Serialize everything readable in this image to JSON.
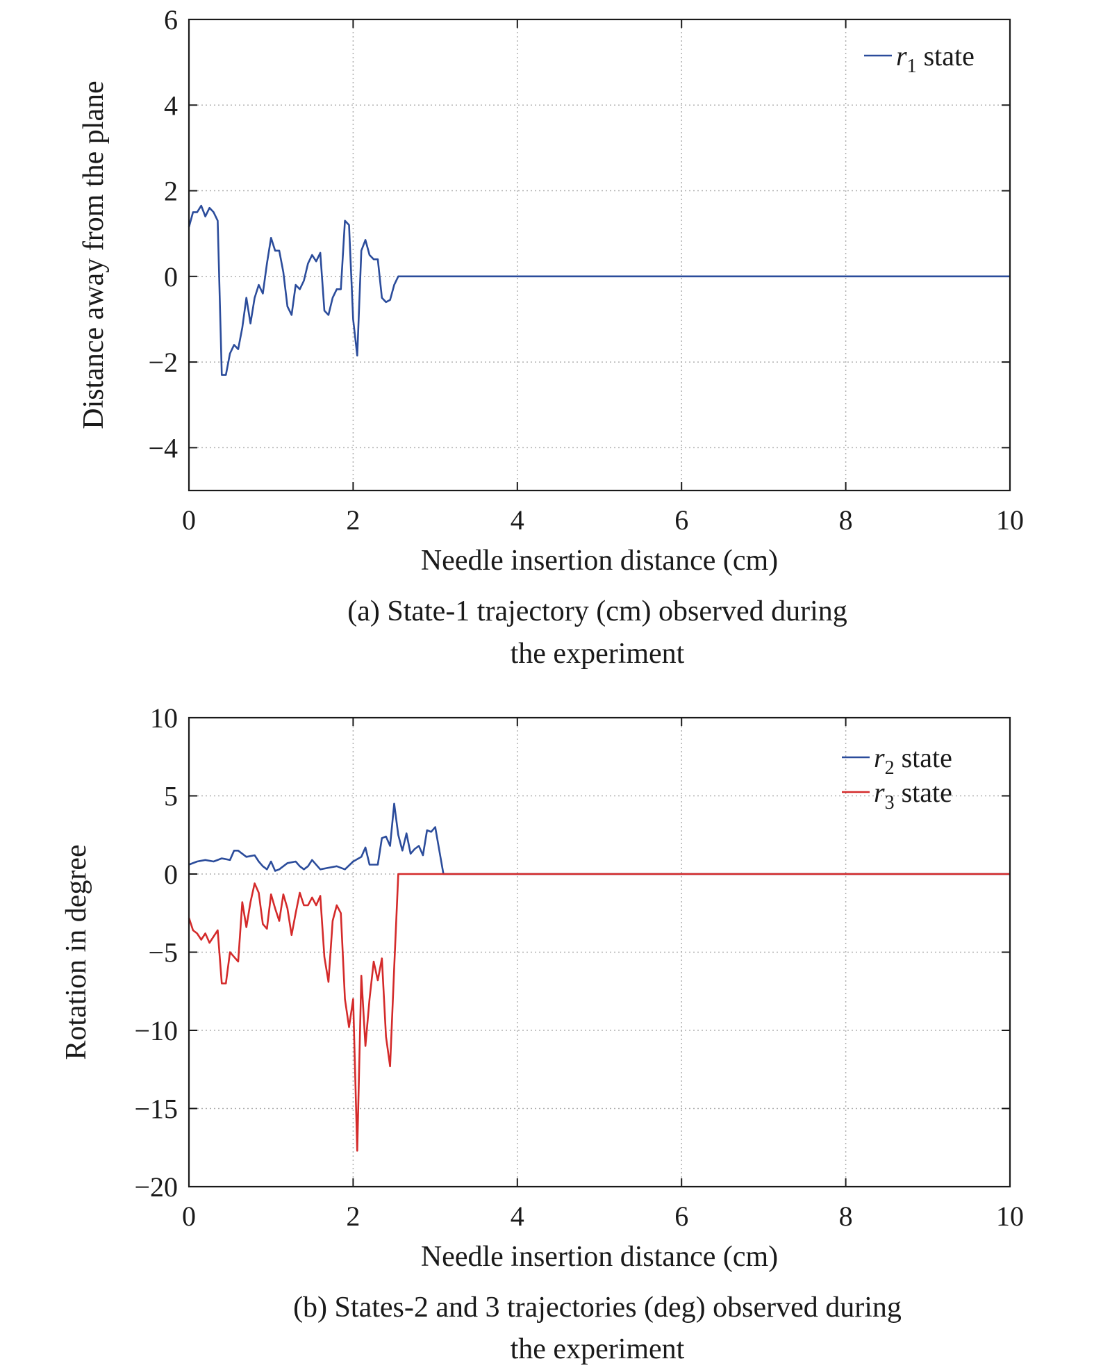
{
  "chart_data": [
    {
      "type": "line",
      "caption": [
        "(a) State-1 trajectory (cm) observed during",
        "the experiment"
      ],
      "xlabel": "Needle insertion distance (cm)",
      "ylabel": "Distance away from the plane",
      "xlim": [
        0,
        10
      ],
      "ylim": [
        -5,
        6
      ],
      "xticks": [
        0,
        2,
        4,
        6,
        8,
        10
      ],
      "yticks": [
        -4,
        -2,
        0,
        2,
        4,
        6
      ],
      "xtick_labels": [
        "0",
        "2",
        "4",
        "6",
        "8",
        "10"
      ],
      "ytick_labels": [
        "−4",
        "−2",
        "0",
        "2",
        "4",
        "6"
      ],
      "grid": true,
      "legend_position": "top-right",
      "series": [
        {
          "name": "r1 state",
          "legend_main": "r",
          "legend_sub": "1",
          "legend_rest": " state",
          "color": "#2b4c9b",
          "x": [
            0,
            0.05,
            0.1,
            0.15,
            0.2,
            0.25,
            0.3,
            0.35,
            0.4,
            0.45,
            0.5,
            0.55,
            0.6,
            0.65,
            0.7,
            0.75,
            0.8,
            0.85,
            0.9,
            0.95,
            1.0,
            1.05,
            1.1,
            1.15,
            1.2,
            1.25,
            1.3,
            1.35,
            1.4,
            1.45,
            1.5,
            1.55,
            1.6,
            1.65,
            1.7,
            1.75,
            1.8,
            1.85,
            1.9,
            1.95,
            2.0,
            2.05,
            2.1,
            2.15,
            2.2,
            2.25,
            2.3,
            2.35,
            2.4,
            2.45,
            2.5,
            2.55,
            2.6,
            2.65,
            2.7,
            2.75,
            2.8,
            2.85,
            2.9,
            2.95,
            3.0,
            3.05,
            3.1,
            10
          ],
          "y": [
            1.15,
            1.5,
            1.5,
            1.65,
            1.4,
            1.6,
            1.5,
            1.3,
            -2.3,
            -2.3,
            -1.8,
            -1.6,
            -1.7,
            -1.2,
            -0.5,
            -1.1,
            -0.5,
            -0.2,
            -0.4,
            0.3,
            0.9,
            0.6,
            0.6,
            0.1,
            -0.7,
            -0.9,
            -0.2,
            -0.3,
            -0.1,
            0.3,
            0.5,
            0.35,
            0.55,
            -0.8,
            -0.9,
            -0.5,
            -0.3,
            -0.3,
            1.3,
            1.2,
            -1.0,
            -1.85,
            0.6,
            0.85,
            0.5,
            0.4,
            0.4,
            -0.5,
            -0.6,
            -0.55,
            -0.2,
            0.0,
            0.0,
            0.0,
            0.0,
            0.0,
            0.0,
            0.0,
            0.0,
            0.0,
            0.0,
            0.0,
            0.0,
            0.0
          ]
        }
      ]
    },
    {
      "type": "line",
      "caption": [
        "(b) States-2 and 3 trajectories (deg) observed during",
        "the experiment"
      ],
      "xlabel": "Needle insertion distance (cm)",
      "ylabel": "Rotation in degree",
      "xlim": [
        0,
        10
      ],
      "ylim": [
        -20,
        10
      ],
      "xticks": [
        0,
        2,
        4,
        6,
        8,
        10
      ],
      "yticks": [
        -20,
        -15,
        -10,
        -5,
        0,
        5,
        10
      ],
      "xtick_labels": [
        "0",
        "2",
        "4",
        "6",
        "8",
        "10"
      ],
      "ytick_labels": [
        "−20",
        "−15",
        "−10",
        "−5",
        "0",
        "5",
        "10"
      ],
      "grid": true,
      "legend_position": "top-right",
      "series": [
        {
          "name": "r2 state",
          "legend_main": "r",
          "legend_sub": "2",
          "legend_rest": " state",
          "color": "#2b4c9b",
          "x": [
            0,
            0.1,
            0.2,
            0.3,
            0.4,
            0.5,
            0.55,
            0.6,
            0.7,
            0.8,
            0.85,
            0.9,
            0.95,
            1.0,
            1.05,
            1.1,
            1.2,
            1.3,
            1.35,
            1.4,
            1.45,
            1.5,
            1.6,
            1.7,
            1.8,
            1.9,
            2.0,
            2.1,
            2.15,
            2.2,
            2.3,
            2.35,
            2.4,
            2.45,
            2.5,
            2.55,
            2.6,
            2.65,
            2.7,
            2.75,
            2.8,
            2.85,
            2.9,
            2.95,
            3.0,
            3.05,
            3.1,
            10
          ],
          "y": [
            0.6,
            0.8,
            0.9,
            0.8,
            1.0,
            0.9,
            1.5,
            1.5,
            1.1,
            1.2,
            0.8,
            0.5,
            0.3,
            0.8,
            0.2,
            0.3,
            0.7,
            0.8,
            0.5,
            0.3,
            0.5,
            0.9,
            0.3,
            0.4,
            0.5,
            0.3,
            0.8,
            1.1,
            1.7,
            0.6,
            0.6,
            2.3,
            2.4,
            1.8,
            4.5,
            2.5,
            1.5,
            2.6,
            1.3,
            1.6,
            1.8,
            1.2,
            2.8,
            2.7,
            3.0,
            1.5,
            0.0,
            0.0
          ]
        },
        {
          "name": "r3 state",
          "legend_main": "r",
          "legend_sub": "3",
          "legend_rest": " state",
          "color": "#d42a2a",
          "x": [
            0,
            0.05,
            0.1,
            0.15,
            0.2,
            0.25,
            0.3,
            0.35,
            0.4,
            0.45,
            0.5,
            0.55,
            0.6,
            0.65,
            0.7,
            0.75,
            0.8,
            0.85,
            0.9,
            0.95,
            1.0,
            1.05,
            1.1,
            1.15,
            1.2,
            1.25,
            1.3,
            1.35,
            1.4,
            1.45,
            1.5,
            1.55,
            1.6,
            1.65,
            1.7,
            1.75,
            1.8,
            1.85,
            1.9,
            1.95,
            2.0,
            2.05,
            2.1,
            2.15,
            2.2,
            2.25,
            2.3,
            2.35,
            2.4,
            2.45,
            2.5,
            2.55,
            2.6,
            2.65,
            2.7,
            2.75,
            2.8,
            2.85,
            2.9,
            2.95,
            3.0,
            3.05,
            3.1,
            10
          ],
          "y": [
            -2.8,
            -3.6,
            -3.8,
            -4.2,
            -3.8,
            -4.4,
            -4.0,
            -3.6,
            -7.0,
            -7.0,
            -5.0,
            -5.3,
            -5.6,
            -1.8,
            -3.4,
            -1.8,
            -0.6,
            -1.2,
            -3.2,
            -3.5,
            -1.3,
            -2.2,
            -3.0,
            -1.3,
            -2.2,
            -3.9,
            -2.5,
            -1.2,
            -2.0,
            -2.0,
            -1.5,
            -2.0,
            -1.4,
            -5.3,
            -6.9,
            -3.0,
            -2.0,
            -2.5,
            -8.0,
            -9.8,
            -8.0,
            -17.7,
            -6.5,
            -11.0,
            -8.0,
            -5.6,
            -6.8,
            -5.4,
            -10.4,
            -12.3,
            -6.0,
            0.0,
            0.0,
            0.0,
            0.0,
            0.0,
            0.0,
            0.0,
            0.0,
            0.0,
            0.0,
            0.0,
            0.0,
            0.0
          ]
        }
      ]
    }
  ]
}
